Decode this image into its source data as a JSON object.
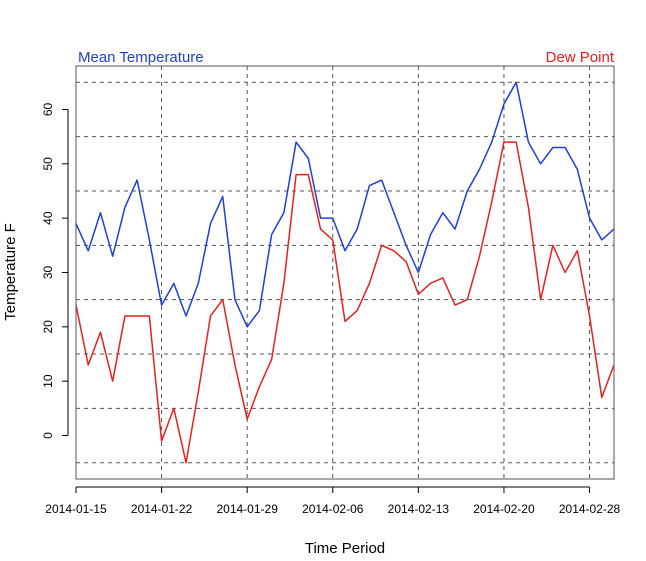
{
  "chart_data": {
    "type": "line",
    "xlabel": "Time Period",
    "ylabel": "Temperature F",
    "xlim": [
      0,
      44
    ],
    "ylim": [
      -8,
      68
    ],
    "x_ticks": [
      {
        "pos": 0,
        "label": "2014-01-15"
      },
      {
        "pos": 7,
        "label": "2014-01-22"
      },
      {
        "pos": 14,
        "label": "2014-01-29"
      },
      {
        "pos": 21,
        "label": "2014-02-06"
      },
      {
        "pos": 28,
        "label": "2014-02-13"
      },
      {
        "pos": 35,
        "label": "2014-02-20"
      },
      {
        "pos": 42,
        "label": "2014-02-28"
      }
    ],
    "y_ticks": [
      0,
      10,
      20,
      30,
      40,
      50,
      60
    ],
    "grid": {
      "vertical": [
        0,
        7,
        14,
        21,
        28,
        35,
        42
      ],
      "horizontal": [
        -5,
        5,
        15,
        25,
        35,
        45,
        55,
        65
      ]
    },
    "legend": {
      "left": {
        "text": "Mean Temperature",
        "color": "#1f3fd9"
      },
      "right": {
        "text": "Dew Point",
        "color": "#e8201e"
      }
    },
    "series": [
      {
        "name": "Mean Temperature",
        "color": "#1f3fd9",
        "values": [
          39,
          34,
          41,
          33,
          42,
          47,
          36,
          24,
          28,
          22,
          28,
          39,
          44,
          25,
          20,
          23,
          37,
          41,
          54,
          51,
          40,
          40,
          34,
          38,
          46,
          47,
          41,
          35,
          30,
          37,
          41,
          38,
          45,
          49,
          54,
          61,
          65,
          54,
          50,
          53,
          53,
          49,
          40,
          36,
          38
        ]
      },
      {
        "name": "Dew Point",
        "color": "#e8201e",
        "values": [
          24,
          13,
          19,
          10,
          22,
          22,
          22,
          -1,
          5,
          -5,
          8,
          22,
          25,
          13,
          3,
          9,
          14,
          28,
          48,
          48,
          38,
          36,
          21,
          23,
          28,
          35,
          34,
          32,
          26,
          28,
          29,
          24,
          25,
          33,
          43,
          54,
          54,
          42,
          25,
          35,
          30,
          34,
          22,
          7,
          13
        ]
      }
    ]
  }
}
